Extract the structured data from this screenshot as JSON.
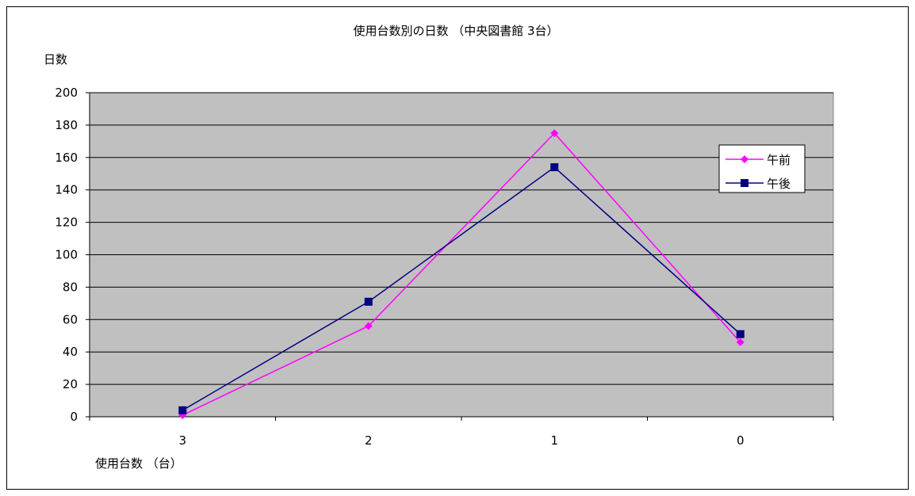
{
  "chart_data": {
    "type": "line",
    "title": "使用台数別の日数 （中央図書館 3台）",
    "xlabel": "使用台数 （台）",
    "ylabel": "日数",
    "categories": [
      "3",
      "2",
      "1",
      "0"
    ],
    "ylim": [
      0,
      200
    ],
    "yticks": [
      0,
      20,
      40,
      60,
      80,
      100,
      120,
      140,
      160,
      180,
      200
    ],
    "grid": true,
    "legend_position": "right",
    "plot_background": "#c0c0c0",
    "series": [
      {
        "name": "午前",
        "values": [
          1,
          56,
          175,
          46
        ],
        "color": "#ff00ff",
        "marker": "diamond"
      },
      {
        "name": "午後",
        "values": [
          4,
          71,
          154,
          51
        ],
        "color": "#000080",
        "marker": "square"
      }
    ]
  }
}
